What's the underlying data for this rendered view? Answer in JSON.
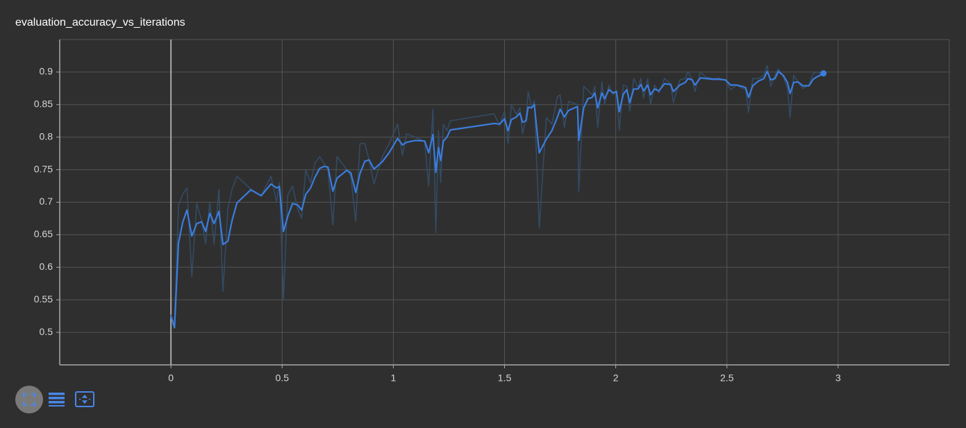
{
  "chart_data": {
    "type": "line",
    "title": "evaluation_accuracy_vs_iterations",
    "xlim": [
      -0.5,
      3.5
    ],
    "ylim": [
      0.45,
      0.95
    ],
    "xticks": [
      0,
      0.5,
      1,
      1.5,
      2,
      2.5,
      3
    ],
    "yticks": [
      0.5,
      0.55,
      0.6,
      0.65,
      0.7,
      0.75,
      0.8,
      0.85,
      0.9
    ],
    "grid": true,
    "x": [
      0,
      0.016,
      0.034,
      0.053,
      0.072,
      0.094,
      0.116,
      0.138,
      0.156,
      0.175,
      0.194,
      0.216,
      0.234,
      0.256,
      0.275,
      0.297,
      0.359,
      0.406,
      0.45,
      0.475,
      0.488,
      0.506,
      0.525,
      0.547,
      0.569,
      0.588,
      0.606,
      0.628,
      0.647,
      0.669,
      0.688,
      0.706,
      0.728,
      0.747,
      0.791,
      0.809,
      0.831,
      0.85,
      0.872,
      0.891,
      0.913,
      0.95,
      0.981,
      1.019,
      1.041,
      1.059,
      1.1,
      1.141,
      1.159,
      1.178,
      1.191,
      1.203,
      1.213,
      1.225,
      1.241,
      1.256,
      1.453,
      1.478,
      1.5,
      1.516,
      1.531,
      1.553,
      1.569,
      1.581,
      1.597,
      1.606,
      1.622,
      1.634,
      1.656,
      1.688,
      1.713,
      1.738,
      1.75,
      1.769,
      1.788,
      1.828,
      1.834,
      1.856,
      1.875,
      1.894,
      1.906,
      1.919,
      1.938,
      1.95,
      1.969,
      1.988,
      2.003,
      2.016,
      2.034,
      2.05,
      2.063,
      2.081,
      2.1,
      2.113,
      2.125,
      2.144,
      2.156,
      2.175,
      2.194,
      2.219,
      2.247,
      2.259,
      2.288,
      2.313,
      2.325,
      2.344,
      2.356,
      2.381,
      2.406,
      2.438,
      2.463,
      2.494,
      2.516,
      2.544,
      2.569,
      2.584,
      2.597,
      2.616,
      2.641,
      2.666,
      2.681,
      2.697,
      2.716,
      2.731,
      2.753,
      2.772,
      2.784,
      2.8,
      2.819,
      2.841,
      2.869,
      2.888,
      2.906,
      2.919,
      2.934
    ],
    "series": [
      {
        "color": "#34506f",
        "values": [
          0.527,
          0.51,
          0.695,
          0.712,
          0.722,
          0.585,
          0.698,
          0.672,
          0.636,
          0.7,
          0.635,
          0.72,
          0.563,
          0.69,
          0.72,
          0.74,
          0.72,
          0.71,
          0.74,
          0.7,
          0.73,
          0.55,
          0.71,
          0.725,
          0.69,
          0.675,
          0.75,
          0.73,
          0.76,
          0.77,
          0.76,
          0.75,
          0.665,
          0.77,
          0.75,
          0.74,
          0.67,
          0.79,
          0.79,
          0.765,
          0.728,
          0.77,
          0.79,
          0.82,
          0.772,
          0.805,
          0.8,
          0.793,
          0.725,
          0.843,
          0.653,
          0.81,
          0.73,
          0.82,
          0.81,
          0.825,
          0.836,
          0.818,
          0.84,
          0.79,
          0.85,
          0.835,
          0.845,
          0.805,
          0.83,
          0.87,
          0.845,
          0.856,
          0.66,
          0.83,
          0.82,
          0.862,
          0.865,
          0.815,
          0.855,
          0.85,
          0.716,
          0.878,
          0.872,
          0.865,
          0.878,
          0.815,
          0.885,
          0.85,
          0.88,
          0.865,
          0.872,
          0.81,
          0.88,
          0.878,
          0.84,
          0.89,
          0.876,
          0.89,
          0.86,
          0.89,
          0.85,
          0.88,
          0.868,
          0.89,
          0.882,
          0.853,
          0.888,
          0.89,
          0.901,
          0.888,
          0.87,
          0.9,
          0.892,
          0.89,
          0.891,
          0.887,
          0.873,
          0.88,
          0.875,
          0.874,
          0.838,
          0.89,
          0.89,
          0.895,
          0.91,
          0.878,
          0.895,
          0.905,
          0.893,
          0.875,
          0.83,
          0.895,
          0.885,
          0.875,
          0.88,
          0.898,
          0.9,
          0.898,
          0.899
        ]
      },
      {
        "color": "#3b7ddd",
        "values": [
          0.525,
          0.507,
          0.637,
          0.669,
          0.688,
          0.648,
          0.667,
          0.67,
          0.655,
          0.683,
          0.667,
          0.686,
          0.635,
          0.64,
          0.672,
          0.699,
          0.719,
          0.71,
          0.728,
          0.722,
          0.724,
          0.655,
          0.678,
          0.698,
          0.696,
          0.688,
          0.712,
          0.722,
          0.738,
          0.752,
          0.755,
          0.754,
          0.717,
          0.737,
          0.749,
          0.745,
          0.715,
          0.744,
          0.763,
          0.765,
          0.751,
          0.762,
          0.776,
          0.798,
          0.788,
          0.792,
          0.795,
          0.794,
          0.776,
          0.804,
          0.746,
          0.784,
          0.764,
          0.794,
          0.8,
          0.811,
          0.821,
          0.82,
          0.828,
          0.81,
          0.827,
          0.831,
          0.837,
          0.823,
          0.825,
          0.846,
          0.845,
          0.85,
          0.776,
          0.797,
          0.81,
          0.831,
          0.843,
          0.831,
          0.841,
          0.847,
          0.795,
          0.845,
          0.859,
          0.861,
          0.868,
          0.845,
          0.868,
          0.859,
          0.873,
          0.868,
          0.87,
          0.839,
          0.866,
          0.873,
          0.853,
          0.874,
          0.874,
          0.881,
          0.871,
          0.88,
          0.865,
          0.874,
          0.871,
          0.882,
          0.881,
          0.87,
          0.88,
          0.884,
          0.89,
          0.888,
          0.88,
          0.891,
          0.89,
          0.889,
          0.889,
          0.888,
          0.88,
          0.88,
          0.878,
          0.876,
          0.861,
          0.879,
          0.886,
          0.89,
          0.901,
          0.888,
          0.89,
          0.901,
          0.895,
          0.884,
          0.867,
          0.884,
          0.885,
          0.879,
          0.879,
          0.889,
          0.893,
          0.895,
          0.898
        ]
      }
    ]
  }
}
